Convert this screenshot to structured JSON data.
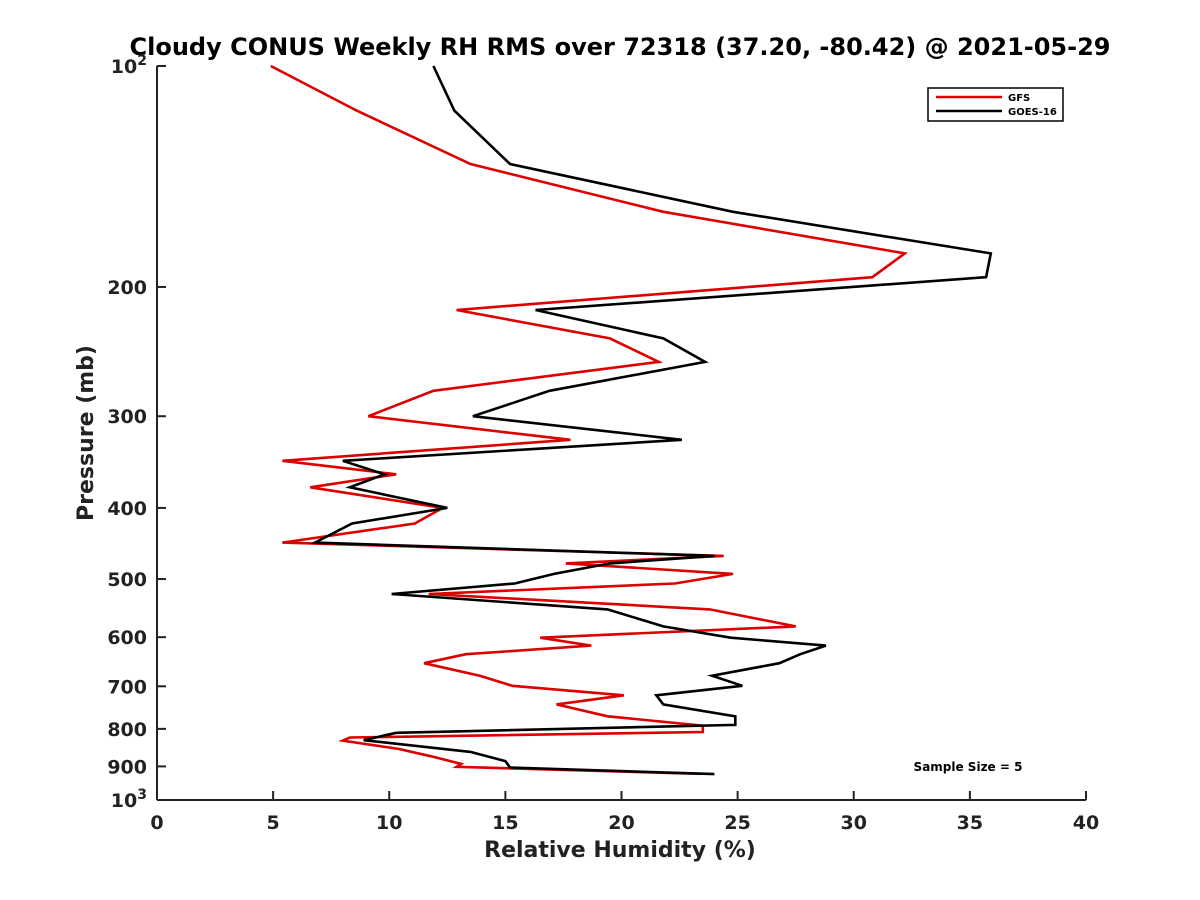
{
  "chart_data": {
    "type": "line",
    "title": "Cloudy CONUS Weekly RH RMS over 72318 (37.20, -80.42) @ 2021-05-29",
    "xlabel": "Relative Humidity (%)",
    "ylabel": "Pressure (mb)",
    "xlim": [
      0,
      40
    ],
    "ylim": [
      100,
      1000
    ],
    "yscale": "log",
    "y_reversed": true,
    "x_ticks": [
      0,
      5,
      10,
      15,
      20,
      25,
      30,
      35,
      40
    ],
    "x_tick_labels": [
      "0",
      "5",
      "10",
      "15",
      "20",
      "25",
      "30",
      "35",
      "40"
    ],
    "y_ticks": [
      100,
      200,
      300,
      400,
      500,
      600,
      700,
      800,
      900,
      1000
    ],
    "y_tick_labels": [
      {
        "base": "10",
        "exp": "2"
      },
      {
        "base": "200",
        "exp": ""
      },
      {
        "base": "300",
        "exp": ""
      },
      {
        "base": "400",
        "exp": ""
      },
      {
        "base": "500",
        "exp": ""
      },
      {
        "base": "600",
        "exp": ""
      },
      {
        "base": "700",
        "exp": ""
      },
      {
        "base": "800",
        "exp": ""
      },
      {
        "base": "900",
        "exp": ""
      },
      {
        "base": "10",
        "exp": "3"
      }
    ],
    "legend_position": "top-right",
    "annotation": "Sample Size = 5",
    "series": [
      {
        "name": "GFS",
        "color": "#dd0000",
        "x": [
          4.9,
          8.6,
          13.5,
          21.8,
          32.2,
          30.8,
          12.9,
          19.5,
          21.6,
          11.9,
          9.1,
          17.8,
          5.4,
          10.3,
          6.6,
          12.3,
          11.1,
          5.4,
          24.4,
          17.6,
          24.8,
          22.3,
          11.7,
          23.8,
          27.5,
          16.5,
          18.7,
          13.3,
          11.5,
          13.9,
          15.3,
          20.1,
          17.2,
          19.4,
          23.5,
          23.5,
          8.3,
          8.0,
          10.4,
          11.8,
          13.1,
          12.9,
          23.4
        ],
        "y": [
          100,
          115,
          136,
          158,
          180,
          194,
          215,
          235,
          253,
          277,
          300,
          323,
          345,
          360,
          375,
          400,
          420,
          446,
          465,
          476,
          492,
          507,
          524,
          550,
          580,
          601,
          616,
          633,
          651,
          677,
          699,
          720,
          741,
          769,
          792,
          808,
          822,
          830,
          852,
          872,
          893,
          901,
          921
        ]
      },
      {
        "name": "GOES-16",
        "color": "#000000",
        "x": [
          11.9,
          12.8,
          15.2,
          24.8,
          35.9,
          35.7,
          16.3,
          21.8,
          23.6,
          16.9,
          13.6,
          22.6,
          8.0,
          9.8,
          8.3,
          12.5,
          8.4,
          6.8,
          24.0,
          19.5,
          17.1,
          15.4,
          10.1,
          19.4,
          21.8,
          24.7,
          28.8,
          27.7,
          26.8,
          23.9,
          25.2,
          21.5,
          21.8,
          24.9,
          24.9,
          10.3,
          8.9,
          13.5,
          15.0,
          15.2,
          24.0
        ],
        "y": [
          100,
          115,
          136,
          158,
          180,
          194,
          215,
          235,
          253,
          277,
          300,
          323,
          345,
          360,
          375,
          400,
          420,
          446,
          465,
          476,
          492,
          507,
          524,
          550,
          580,
          601,
          616,
          633,
          651,
          677,
          699,
          720,
          741,
          769,
          790,
          810,
          829,
          860,
          885,
          903,
          922
        ]
      }
    ]
  }
}
